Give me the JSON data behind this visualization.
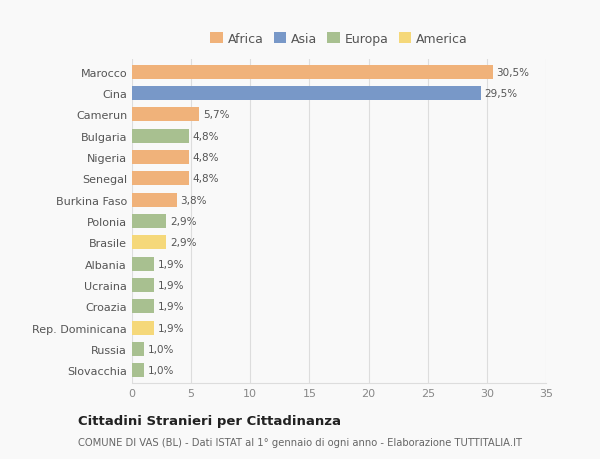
{
  "categories": [
    "Marocco",
    "Cina",
    "Camerun",
    "Bulgaria",
    "Nigeria",
    "Senegal",
    "Burkina Faso",
    "Polonia",
    "Brasile",
    "Albania",
    "Ucraina",
    "Croazia",
    "Rep. Dominicana",
    "Russia",
    "Slovacchia"
  ],
  "values": [
    30.5,
    29.5,
    5.7,
    4.8,
    4.8,
    4.8,
    3.8,
    2.9,
    2.9,
    1.9,
    1.9,
    1.9,
    1.9,
    1.0,
    1.0
  ],
  "labels": [
    "30,5%",
    "29,5%",
    "5,7%",
    "4,8%",
    "4,8%",
    "4,8%",
    "3,8%",
    "2,9%",
    "2,9%",
    "1,9%",
    "1,9%",
    "1,9%",
    "1,9%",
    "1,0%",
    "1,0%"
  ],
  "colors": [
    "#F0B27A",
    "#7898C8",
    "#F0B27A",
    "#A8C090",
    "#F0B27A",
    "#F0B27A",
    "#F0B27A",
    "#A8C090",
    "#F5D87A",
    "#A8C090",
    "#A8C090",
    "#A8C090",
    "#F5D87A",
    "#A8C090",
    "#A8C090"
  ],
  "legend_labels": [
    "Africa",
    "Asia",
    "Europa",
    "America"
  ],
  "legend_colors": [
    "#F0B27A",
    "#7898C8",
    "#A8C090",
    "#F5D87A"
  ],
  "xlim": [
    0,
    35
  ],
  "xticks": [
    0,
    5,
    10,
    15,
    20,
    25,
    30,
    35
  ],
  "title": "Cittadini Stranieri per Cittadinanza",
  "subtitle": "COMUNE DI VAS (BL) - Dati ISTAT al 1° gennaio di ogni anno - Elaborazione TUTTITALIA.IT",
  "background_color": "#f9f9f9",
  "grid_color": "#dddddd",
  "bar_height": 0.65
}
